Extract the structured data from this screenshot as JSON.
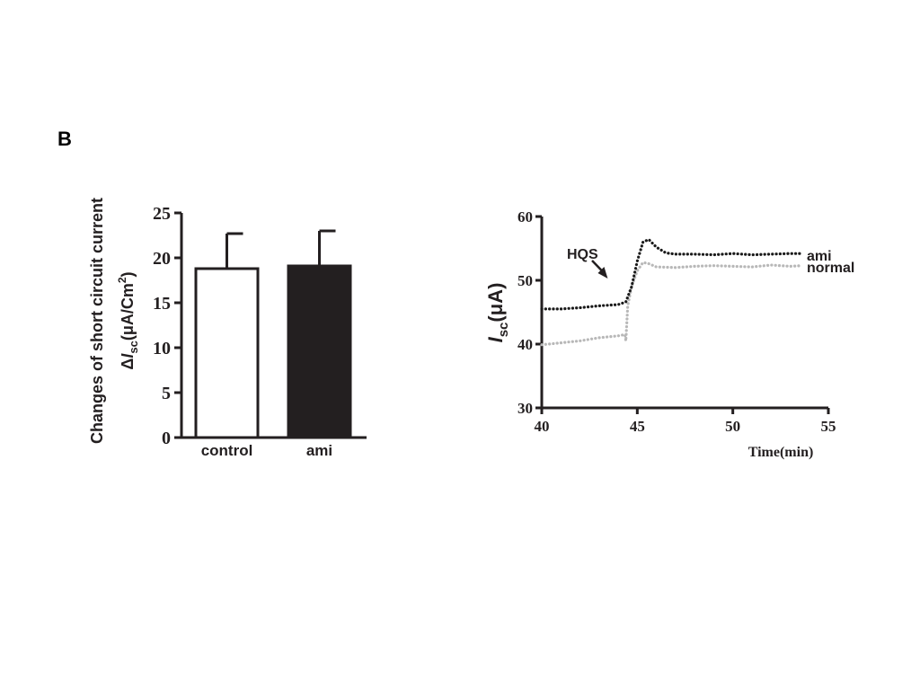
{
  "panel_label": "B",
  "chart_data": [
    {
      "type": "bar",
      "ylabel_line1": "Changes of short circuit  current",
      "ylabel_line2": {
        "delta": "Δ",
        "I": "I",
        "sub": "sc",
        "unit_open": "(μA/Cm",
        "sup": "2",
        "unit_close": ")"
      },
      "categories": [
        "control",
        "ami"
      ],
      "values": [
        18.8,
        19.1
      ],
      "errors": [
        3.9,
        3.9
      ],
      "ylim": [
        0,
        25
      ],
      "yticks": [
        "0",
        "5",
        "10",
        "15",
        "20",
        "25"
      ],
      "bar_fill": [
        "#ffffff",
        "#231f20"
      ],
      "bar_stroke": "#231f20"
    },
    {
      "type": "line",
      "xlabel": "Time(min)",
      "ylabel": {
        "I": "I",
        "sub": "sc",
        "unit": "(μA)"
      },
      "xlim": [
        40,
        55
      ],
      "ylim": [
        30,
        60
      ],
      "xticks": [
        "40",
        "45",
        "50",
        "55"
      ],
      "yticks": [
        "30",
        "40",
        "50",
        "60"
      ],
      "annotation": "HQS",
      "annotation_x": 44.3,
      "series": [
        {
          "name": "ami",
          "color": "#1a1a1a",
          "x": [
            40.0,
            41.0,
            42.0,
            43.0,
            44.0,
            44.4,
            44.7,
            45.0,
            45.3,
            45.6,
            46.0,
            46.5,
            47.0,
            48.0,
            49.0,
            50.0,
            51.0,
            52.0,
            53.0,
            53.6
          ],
          "y": [
            45.5,
            45.5,
            45.7,
            46.0,
            46.2,
            46.6,
            49.0,
            53.0,
            56.0,
            56.4,
            55.2,
            54.3,
            54.1,
            54.1,
            54.0,
            54.2,
            54.0,
            54.1,
            54.2,
            54.2
          ]
        },
        {
          "name": "normal",
          "color": "#b8b8b8",
          "x": [
            40.0,
            41.0,
            42.0,
            43.0,
            44.0,
            44.35,
            44.4,
            44.5,
            44.7,
            45.0,
            45.3,
            45.6,
            46.0,
            47.0,
            48.0,
            49.0,
            50.0,
            51.0,
            52.0,
            53.0,
            53.6
          ],
          "y": [
            39.9,
            40.2,
            40.5,
            41.0,
            41.3,
            41.5,
            40.5,
            46.0,
            49.0,
            51.5,
            52.8,
            52.6,
            52.1,
            52.0,
            52.2,
            52.3,
            52.2,
            52.1,
            52.4,
            52.2,
            52.3
          ]
        }
      ]
    }
  ]
}
